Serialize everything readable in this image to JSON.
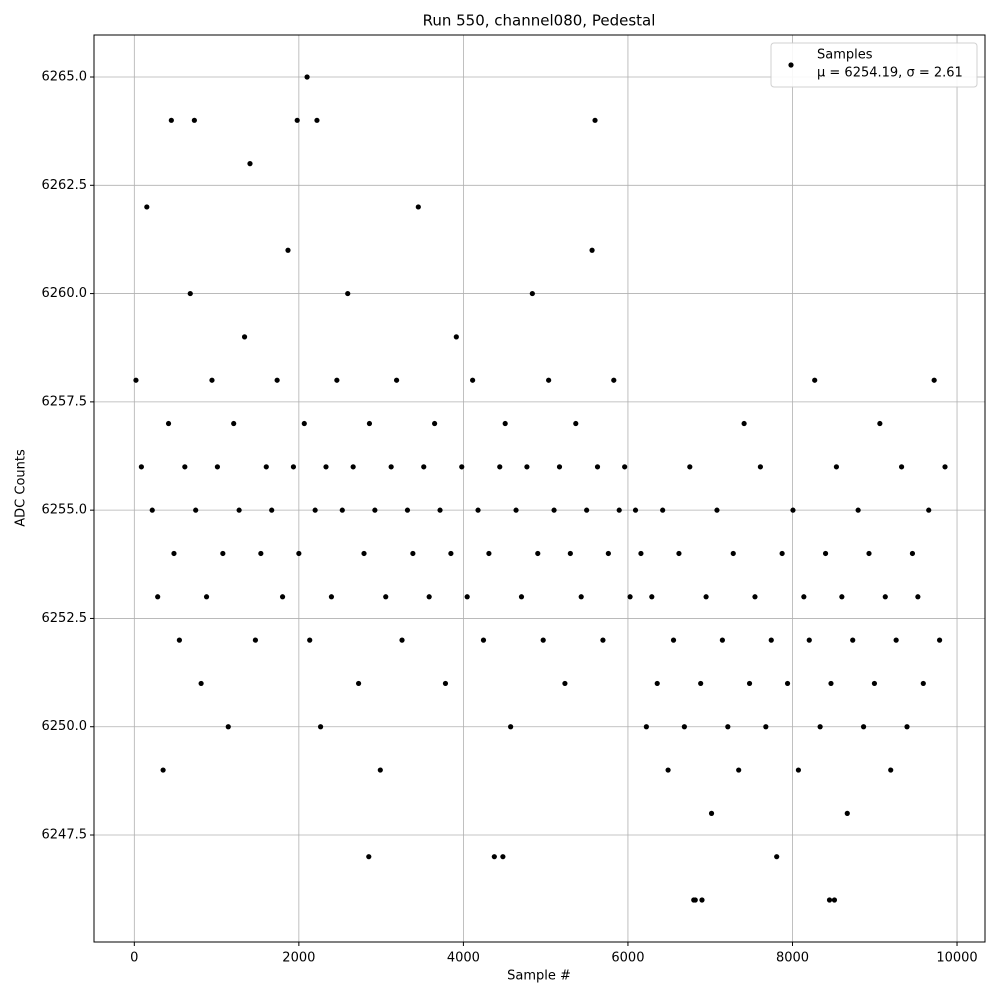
{
  "chart_data": {
    "type": "scatter",
    "title": "Run 550, channel080, Pedestal",
    "x_label": "Sample #",
    "y_label": "ADC Counts",
    "xlim": [
      -490,
      10340
    ],
    "ylim": [
      6245.03,
      6265.97
    ],
    "xticks": [
      0,
      2000,
      4000,
      6000,
      8000,
      10000
    ],
    "yticks": [
      {
        "value": 6247.5,
        "label": "6247.5"
      },
      {
        "value": 6250,
        "label": "6250.0"
      },
      {
        "value": 6252.5,
        "label": "6252.5"
      },
      {
        "value": 6255,
        "label": "6255.0"
      },
      {
        "value": 6257.5,
        "label": "6257.5"
      },
      {
        "value": 6260,
        "label": "6260.0"
      },
      {
        "value": 6262.5,
        "label": "6262.5"
      },
      {
        "value": 6265,
        "label": "6265.0"
      }
    ],
    "grid": true,
    "legend": "upper right",
    "series": [
      {
        "name": "Samples",
        "stats": "μ = 6254.19, σ = 2.61",
        "color": "#000000",
        "x": [
          20,
          86,
          152,
          218,
          284,
          350,
          416,
          482,
          548,
          614,
          680,
          746,
          812,
          878,
          944,
          1010,
          1076,
          1142,
          1208,
          1274,
          1340,
          1406,
          1472,
          1538,
          1604,
          1670,
          1736,
          1802,
          1868,
          1934,
          2000,
          2066,
          2132,
          2198,
          2264,
          2330,
          2396,
          2462,
          2528,
          2594,
          2660,
          2726,
          2792,
          2858,
          2924,
          2990,
          3056,
          3122,
          3188,
          3254,
          3320,
          3386,
          3452,
          3518,
          3584,
          3650,
          3716,
          3782,
          3848,
          3914,
          3980,
          4046,
          4112,
          4178,
          4244,
          4310,
          4376,
          4442,
          4508,
          4574,
          4640,
          4706,
          4772,
          4838,
          4904,
          4970,
          5036,
          5102,
          5168,
          5234,
          5300,
          5366,
          5432,
          5498,
          5564,
          5630,
          5696,
          5762,
          5828,
          5894,
          5960,
          6026,
          6092,
          6158,
          6224,
          6290,
          6356,
          6422,
          6488,
          6554,
          6620,
          6686,
          6752,
          6818,
          6884,
          6950,
          7016,
          7082,
          7148,
          7214,
          7280,
          7346,
          7412,
          7478,
          7544,
          7610,
          7676,
          7742,
          7808,
          7874,
          7940,
          8006,
          8072,
          8138,
          8204,
          8270,
          8336,
          8402,
          8468,
          8534,
          8600,
          8666,
          8732,
          8798,
          8864,
          8930,
          8996,
          9062,
          9128,
          9194,
          9260,
          9326,
          9392,
          9458,
          9524,
          9590,
          9656,
          9722,
          9788,
          9854,
          2100,
          450,
          730,
          5600,
          1980,
          2220,
          6800,
          6900,
          8450,
          8510,
          4480,
          2850
        ],
        "values": [
          6258,
          6256,
          6262,
          6255,
          6253,
          6249,
          6257,
          6254,
          6252,
          6256,
          6260,
          6255,
          6251,
          6253,
          6258,
          6256,
          6254,
          6250,
          6257,
          6255,
          6259,
          6263,
          6252,
          6254,
          6256,
          6255,
          6258,
          6253,
          6261,
          6256,
          6254,
          6257,
          6252,
          6255,
          6250,
          6256,
          6253,
          6258,
          6255,
          6260,
          6256,
          6251,
          6254,
          6257,
          6255,
          6249,
          6253,
          6256,
          6258,
          6252,
          6255,
          6254,
          6262,
          6256,
          6253,
          6257,
          6255,
          6251,
          6254,
          6259,
          6256,
          6253,
          6258,
          6255,
          6252,
          6254,
          6247,
          6256,
          6257,
          6250,
          6255,
          6253,
          6256,
          6260,
          6254,
          6252,
          6258,
          6255,
          6256,
          6251,
          6254,
          6257,
          6253,
          6255,
          6261,
          6256,
          6252,
          6254,
          6258,
          6255,
          6256,
          6253,
          6255,
          6254,
          6250,
          6253,
          6251,
          6255,
          6249,
          6252,
          6254,
          6250,
          6256,
          6246,
          6251,
          6253,
          6248,
          6255,
          6252,
          6250,
          6254,
          6249,
          6257,
          6251,
          6253,
          6256,
          6250,
          6252,
          6247,
          6254,
          6251,
          6255,
          6249,
          6253,
          6252,
          6258,
          6250,
          6254,
          6251,
          6256,
          6253,
          6248,
          6252,
          6255,
          6250,
          6254,
          6251,
          6257,
          6253,
          6249,
          6252,
          6256,
          6250,
          6254,
          6253,
          6251,
          6255,
          6258,
          6252,
          6256,
          6265,
          6264,
          6264,
          6264,
          6264,
          6264,
          6246,
          6246,
          6246,
          6246,
          6247,
          6247
        ]
      }
    ]
  }
}
